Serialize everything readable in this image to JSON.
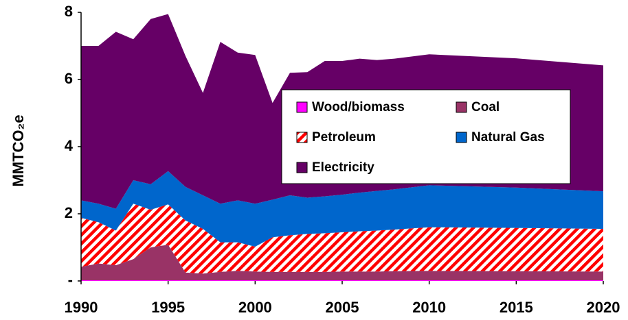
{
  "chart_data": {
    "type": "stacked-area",
    "y_label": "MMTCO₂e",
    "x": [
      1990,
      1991,
      1992,
      1993,
      1994,
      1995,
      1996,
      1997,
      1998,
      1999,
      2000,
      2001,
      2002,
      2003,
      2004,
      2005,
      2006,
      2007,
      2008,
      2010,
      2015,
      2020
    ],
    "series": [
      {
        "name": "Wood/biomass",
        "color": "#ff00ff",
        "values": [
          0.02,
          0.02,
          0.02,
          0.02,
          0.02,
          0.02,
          0.02,
          0.02,
          0.02,
          0.02,
          0.02,
          0.02,
          0.02,
          0.02,
          0.02,
          0.02,
          0.02,
          0.02,
          0.02,
          0.02,
          0.02,
          0.02
        ]
      },
      {
        "name": "Coal",
        "color": "#993366",
        "values": [
          0.4,
          0.5,
          0.45,
          0.63,
          0.98,
          1.06,
          0.23,
          0.2,
          0.25,
          0.28,
          0.26,
          0.25,
          0.25,
          0.25,
          0.25,
          0.26,
          0.26,
          0.26,
          0.27,
          0.28,
          0.27,
          0.26
        ]
      },
      {
        "name": "Petroleum",
        "color": "#ff0000",
        "hatch": true,
        "values": [
          1.46,
          1.23,
          1.03,
          1.65,
          1.12,
          1.2,
          1.55,
          1.33,
          0.88,
          0.85,
          0.74,
          1.03,
          1.09,
          1.13,
          1.15,
          1.17,
          1.2,
          1.22,
          1.24,
          1.3,
          1.29,
          1.27
        ]
      },
      {
        "name": "Natural Gas",
        "color": "#0066cc",
        "values": [
          0.52,
          0.55,
          0.65,
          0.7,
          0.76,
          0.99,
          1.0,
          1.0,
          1.15,
          1.25,
          1.28,
          1.12,
          1.19,
          1.08,
          1.1,
          1.12,
          1.15,
          1.18,
          1.2,
          1.25,
          1.2,
          1.12
        ]
      },
      {
        "name": "Electricity",
        "color": "#660066",
        "values": [
          4.6,
          4.7,
          5.27,
          4.2,
          4.92,
          4.68,
          3.9,
          3.05,
          4.82,
          4.4,
          4.43,
          2.88,
          3.65,
          3.74,
          4.03,
          3.98,
          3.99,
          3.9,
          3.89,
          3.9,
          3.85,
          3.75
        ]
      }
    ],
    "xlim": [
      1990,
      2020
    ],
    "xticks": [
      1990,
      1995,
      2000,
      2005,
      2010,
      2015,
      2020
    ],
    "ylim": [
      0,
      8
    ],
    "yticks": [
      {
        "value": 0,
        "label": "-"
      },
      2,
      4,
      6,
      8
    ],
    "grid": false
  }
}
